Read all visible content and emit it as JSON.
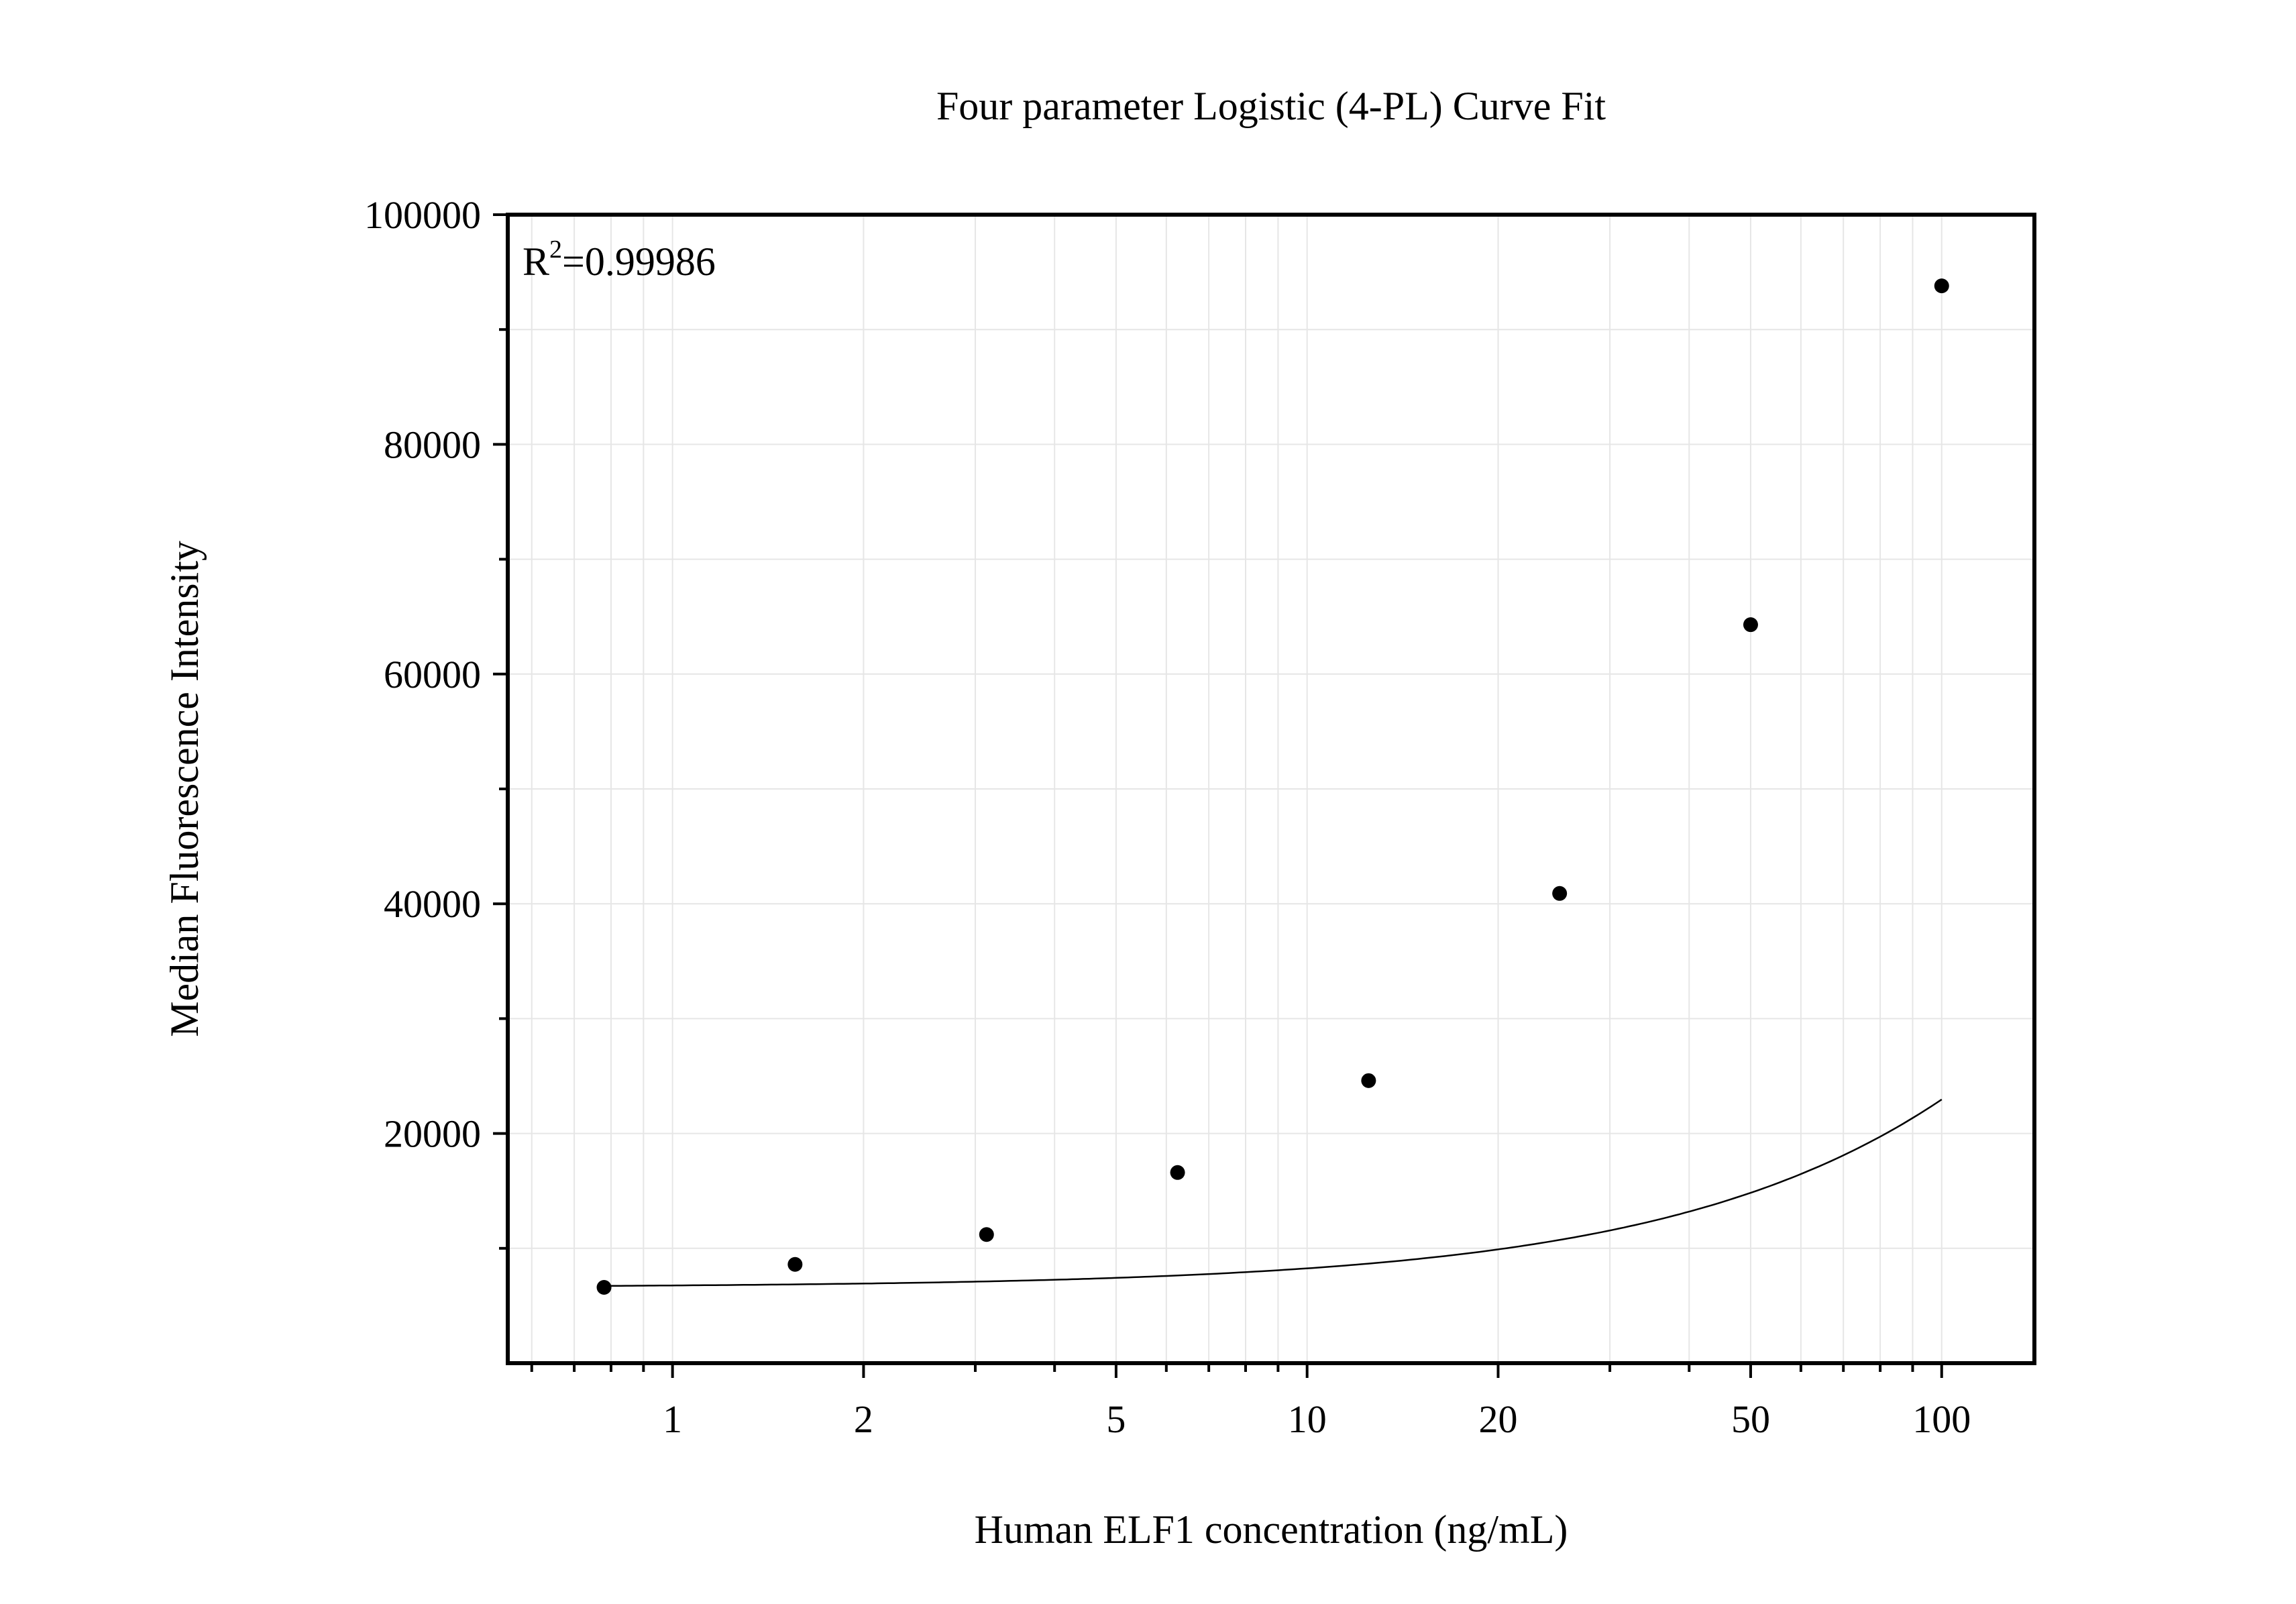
{
  "chart_data": {
    "type": "scatter",
    "title": "Four parameter Logistic (4-PL) Curve Fit",
    "xlabel": "Human ELF1 concentration (ng/mL)",
    "ylabel": "Median Fluorescence Intensity",
    "x_scale": "log",
    "xlim": [
      0.55,
      140
    ],
    "ylim": [
      0,
      100000
    ],
    "x_ticks": [
      1,
      2,
      5,
      10,
      20,
      50,
      100
    ],
    "x_tick_labels": [
      "1",
      "2",
      "5",
      "10",
      "20",
      "50",
      "100"
    ],
    "y_ticks": [
      20000,
      40000,
      60000,
      80000,
      100000
    ],
    "y_tick_labels": [
      "20000",
      "40000",
      "60000",
      "80000",
      "100000"
    ],
    "y_minor_ticks": [
      10000,
      30000,
      50000,
      70000,
      90000
    ],
    "grid": true,
    "legend": "none",
    "annotation": {
      "prefix": "R",
      "superscript": "2",
      "value_text": "=0.99986"
    },
    "series": [
      {
        "x": [
          0.78,
          1.56,
          3.125,
          6.25,
          12.5,
          25,
          50,
          100
        ],
        "y": [
          6600,
          8600,
          11200,
          16600,
          24600,
          40900,
          64300,
          93800
        ]
      }
    ],
    "fit": {
      "model": "4PL",
      "a": 6600,
      "d": 1250000,
      "c": 7500,
      "b": 1.0
    },
    "colors": {
      "points": "#000000",
      "curve": "#000000",
      "grid": "#e6e6e6",
      "axis": "#000000"
    }
  }
}
